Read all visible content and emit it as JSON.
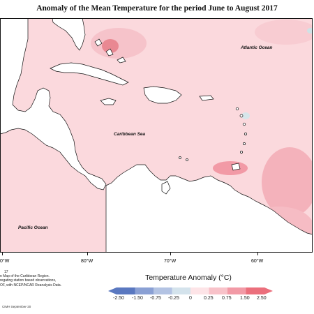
{
  "title": "Anomaly of the Mean Temperature for the period June to August 2017",
  "labels": {
    "atlantic": "Atlantic Ocean",
    "caribbean": "Caribbean Sea",
    "pacific": "Pacific Ocean"
  },
  "longitude_ticks": [
    "0°W",
    "80°W",
    "70°W",
    "60°W"
  ],
  "footnote": {
    "number": "17",
    "lines": [
      "n Map of the Caribbean Region.",
      "regating station based observations,",
      "OF, with NCEP/NCAR Reanalysis Data."
    ],
    "credit": "CIMH September-20"
  },
  "legend": {
    "title": "Temperature Anomaly (°C)",
    "ticks": [
      "-2.50",
      "-1.50",
      "-0.75",
      "-0.25",
      "0",
      "0.25",
      "0.75",
      "1.50",
      "2.50"
    ],
    "colors": [
      "#5a78c0",
      "#8aa0d4",
      "#b3c3e3",
      "#d4e3ec",
      "#ffffff",
      "#fde4e7",
      "#f8c2c9",
      "#f29aa6",
      "#eb6f7c"
    ]
  },
  "colors": {
    "ocean": "#fbd9dd",
    "land": "#ffffff",
    "warm_patch": "#f6b6bf",
    "hot_spot": "#e98892",
    "cool_spot": "#d6e6ea"
  }
}
